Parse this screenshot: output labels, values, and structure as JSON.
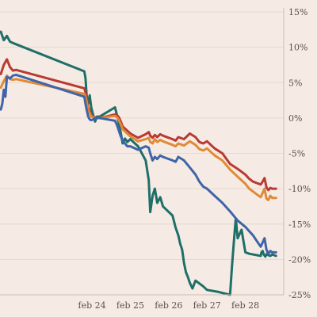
{
  "chart_data": {
    "type": "line",
    "title": "",
    "xlabel": "",
    "ylabel": "",
    "ylim": [
      -25,
      15
    ],
    "y_axis_position": "right",
    "y_ticks": [
      15,
      10,
      5,
      0,
      -5,
      -10,
      -15,
      -20,
      -25
    ],
    "y_tick_labels": [
      "15%",
      "10%",
      "5%",
      "0%",
      "-5%",
      "-10%",
      "-15%",
      "-20%",
      "-25%"
    ],
    "x_ticks": [
      4,
      5,
      6,
      7,
      8
    ],
    "x_tick_labels": [
      "feb 24",
      "feb 25",
      "feb 26",
      "feb 27",
      "feb 28"
    ],
    "xlim": [
      1.6,
      9.0
    ],
    "grid": "horizontal",
    "series": [
      {
        "color": "#1f6f68",
        "x": [
          1.62,
          1.7,
          1.78,
          1.86,
          1.94,
          3.8,
          3.83,
          3.86,
          3.9,
          3.94,
          3.98,
          4.03,
          4.08,
          4.13,
          4.2,
          4.6,
          4.65,
          4.7,
          4.75,
          4.8,
          4.86,
          4.92,
          5.0,
          5.2,
          5.4,
          5.48,
          5.52,
          5.58,
          5.64,
          5.7,
          5.78,
          5.85,
          6.1,
          6.18,
          6.25,
          6.3,
          6.35,
          6.4,
          6.45,
          6.5,
          6.55,
          6.62,
          6.7,
          6.8,
          6.9,
          7.0,
          7.3,
          7.6,
          7.65,
          7.7,
          7.75,
          7.8,
          7.9,
          8.0,
          8.1,
          8.4,
          8.42,
          8.45,
          8.48,
          8.52,
          8.56,
          8.6,
          8.65,
          8.7,
          8.8
        ],
        "values": [
          12.2,
          11.0,
          11.6,
          10.8,
          10.6,
          6.6,
          5.6,
          3.2,
          2.0,
          3.2,
          1.5,
          0.4,
          -0.5,
          0.2,
          0.2,
          1.5,
          0.4,
          -0.8,
          -2.1,
          -3.6,
          -2.9,
          -3.4,
          -3.0,
          -4.0,
          -6.0,
          -8.8,
          -13.3,
          -11.0,
          -10.0,
          -12.0,
          -11.2,
          -12.5,
          -13.8,
          -15.5,
          -16.6,
          -17.8,
          -18.6,
          -20.5,
          -21.8,
          -22.5,
          -23.3,
          -24.1,
          -23.0,
          -23.4,
          -23.8,
          -24.3,
          -24.6,
          -25.0,
          -21.0,
          -17.5,
          -14.2,
          -17.0,
          -15.8,
          -19.0,
          -19.2,
          -19.5,
          -19.0,
          -18.8,
          -19.3,
          -19.6,
          -19.2,
          -19.4,
          -19.5,
          -19.3,
          -19.5
        ]
      },
      {
        "color": "#b83a32",
        "x": [
          1.62,
          1.7,
          1.78,
          1.86,
          1.94,
          2.02,
          3.8,
          3.83,
          3.86,
          3.9,
          3.94,
          3.98,
          4.03,
          4.08,
          4.13,
          4.2,
          4.6,
          4.65,
          4.7,
          4.75,
          4.8,
          4.86,
          4.92,
          5.0,
          5.2,
          5.4,
          5.48,
          5.52,
          5.58,
          5.64,
          5.7,
          5.78,
          5.85,
          6.1,
          6.18,
          6.25,
          6.4,
          6.55,
          6.7,
          6.8,
          6.9,
          7.0,
          7.2,
          7.4,
          7.6,
          7.8,
          8.0,
          8.1,
          8.2,
          8.3,
          8.4,
          8.45,
          8.5,
          8.55,
          8.6,
          8.65,
          8.7,
          8.8
        ],
        "values": [
          6.2,
          7.5,
          8.3,
          7.2,
          6.7,
          6.8,
          4.2,
          3.6,
          2.8,
          1.5,
          1.0,
          0.4,
          0.2,
          0.1,
          0.0,
          0.0,
          0.5,
          0.4,
          0.1,
          -0.5,
          -1.2,
          -1.5,
          -1.8,
          -2.2,
          -2.8,
          -2.3,
          -2.0,
          -2.5,
          -2.8,
          -2.4,
          -2.7,
          -2.3,
          -2.5,
          -3.0,
          -3.2,
          -2.7,
          -3.0,
          -2.2,
          -2.7,
          -3.4,
          -3.6,
          -3.3,
          -4.3,
          -5.0,
          -6.5,
          -7.2,
          -8.0,
          -8.6,
          -9.0,
          -9.2,
          -9.4,
          -9.0,
          -8.5,
          -9.8,
          -10.2,
          -9.9,
          -10.0,
          -10.0
        ]
      },
      {
        "color": "#e08a35",
        "x": [
          1.62,
          1.7,
          1.78,
          1.86,
          1.94,
          2.02,
          3.8,
          3.83,
          3.86,
          3.9,
          3.94,
          3.98,
          4.03,
          4.08,
          4.13,
          4.2,
          4.6,
          4.65,
          4.7,
          4.75,
          4.8,
          4.86,
          4.92,
          5.0,
          5.2,
          5.4,
          5.48,
          5.52,
          5.58,
          5.64,
          5.7,
          5.78,
          5.85,
          6.1,
          6.18,
          6.25,
          6.4,
          6.55,
          6.7,
          6.8,
          6.9,
          7.0,
          7.2,
          7.4,
          7.6,
          7.8,
          8.0,
          8.1,
          8.2,
          8.3,
          8.4,
          8.45,
          8.5,
          8.55,
          8.6,
          8.65,
          8.7,
          8.8
        ],
        "values": [
          4.3,
          5.2,
          6.0,
          5.5,
          5.4,
          5.5,
          3.4,
          3.0,
          2.3,
          1.1,
          0.7,
          0.2,
          0.1,
          0.0,
          0.0,
          0.0,
          0.3,
          0.1,
          -0.3,
          -0.9,
          -1.6,
          -1.9,
          -2.2,
          -2.6,
          -3.3,
          -3.0,
          -2.8,
          -3.4,
          -3.6,
          -3.0,
          -3.4,
          -3.1,
          -3.3,
          -3.8,
          -4.0,
          -3.6,
          -3.9,
          -3.3,
          -3.8,
          -4.4,
          -4.6,
          -4.3,
          -5.3,
          -6.0,
          -7.3,
          -8.3,
          -9.3,
          -10.0,
          -10.4,
          -10.8,
          -11.2,
          -10.6,
          -10.0,
          -11.4,
          -11.6,
          -11.0,
          -11.3,
          -11.3
        ]
      },
      {
        "color": "#3f64a8",
        "x": [
          1.62,
          1.66,
          1.7,
          1.74,
          1.78,
          1.86,
          1.94,
          2.02,
          3.8,
          3.83,
          3.86,
          3.9,
          3.94,
          3.98,
          4.03,
          4.08,
          4.13,
          4.2,
          4.6,
          4.65,
          4.7,
          4.75,
          4.8,
          4.86,
          4.92,
          5.0,
          5.2,
          5.4,
          5.48,
          5.52,
          5.58,
          5.64,
          5.7,
          5.78,
          5.85,
          6.1,
          6.18,
          6.25,
          6.4,
          6.55,
          6.7,
          6.8,
          6.9,
          7.0,
          7.2,
          7.4,
          7.6,
          7.8,
          8.0,
          8.1,
          8.2,
          8.3,
          8.4,
          8.45,
          8.5,
          8.55,
          8.6,
          8.65,
          8.7,
          8.8
        ],
        "values": [
          1.2,
          2.0,
          4.0,
          3.0,
          5.8,
          5.6,
          6.0,
          6.1,
          3.0,
          2.0,
          1.2,
          0.2,
          -0.2,
          -0.3,
          -0.2,
          0.0,
          0.0,
          0.0,
          -0.4,
          -1.0,
          -1.8,
          -2.6,
          -3.2,
          -3.6,
          -4.0,
          -4.0,
          -4.5,
          -4.0,
          -4.2,
          -5.0,
          -6.0,
          -5.5,
          -5.8,
          -5.3,
          -5.5,
          -6.0,
          -6.2,
          -5.5,
          -6.0,
          -7.0,
          -8.0,
          -9.0,
          -9.7,
          -10.0,
          -11.0,
          -12.0,
          -13.2,
          -14.5,
          -15.4,
          -16.0,
          -16.6,
          -17.4,
          -18.2,
          -17.6,
          -17.0,
          -18.6,
          -19.2,
          -18.8,
          -19.0,
          -19.0
        ]
      }
    ]
  }
}
